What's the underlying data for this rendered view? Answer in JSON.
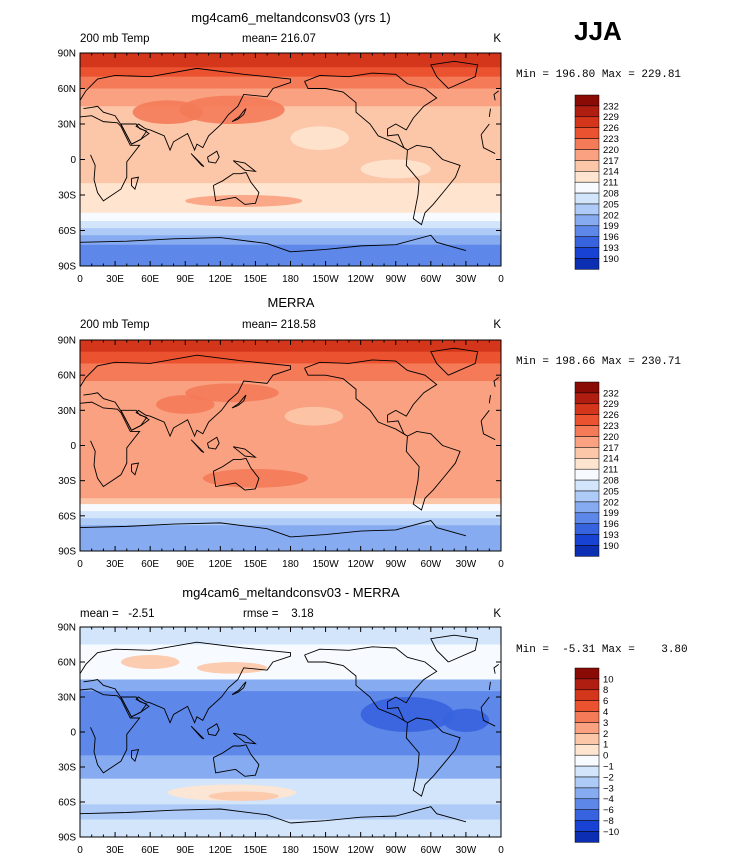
{
  "season_label": "JJA",
  "colors": {
    "warm": [
      "#ffe4cf",
      "#fcc6a8",
      "#f9a180",
      "#f47a58",
      "#ea5230",
      "#d4361c",
      "#b01d11",
      "#8a0a05"
    ],
    "cool": [
      "#f7fbff",
      "#d3e5fb",
      "#aecbf7",
      "#86abf0",
      "#5d87e8",
      "#3763df",
      "#1842d3",
      "#0b2eb2",
      "#04177a"
    ],
    "land_outline": "#000000"
  },
  "chart_data": [
    {
      "type": "heatmap",
      "title": "mg4cam6_meltandconsv03 (yrs 1)",
      "left_label": "200 mb Temp",
      "center_label": "mean= 216.07",
      "units_label": "K",
      "min_max_label": "Min = 196.80 Max = 229.81",
      "colorbar_labels": [
        "232",
        "229",
        "226",
        "223",
        "220",
        "217",
        "214",
        "211",
        "208",
        "205",
        "202",
        "199",
        "196",
        "193",
        "190"
      ],
      "x_ticks": [
        "0",
        "30E",
        "60E",
        "90E",
        "120E",
        "150E",
        "180",
        "150W",
        "120W",
        "90W",
        "60W",
        "30W",
        "0"
      ],
      "y_ticks": [
        "90N",
        "60N",
        "30N",
        "0",
        "30S",
        "60S",
        "90S"
      ],
      "lat_bands": [
        {
          "lat": [
            90,
            78
          ],
          "level": "w5"
        },
        {
          "lat": [
            78,
            70
          ],
          "level": "w4"
        },
        {
          "lat": [
            70,
            60
          ],
          "level": "w3"
        },
        {
          "lat": [
            60,
            45
          ],
          "level": "w2"
        },
        {
          "lat": [
            45,
            0
          ],
          "level": "w1"
        },
        {
          "lat": [
            0,
            -20
          ],
          "level": "w1"
        },
        {
          "lat": [
            -20,
            -45
          ],
          "level": "w0"
        },
        {
          "lat": [
            -45,
            -52
          ],
          "level": "c0"
        },
        {
          "lat": [
            -52,
            -58
          ],
          "level": "c1"
        },
        {
          "lat": [
            -58,
            -64
          ],
          "level": "c2"
        },
        {
          "lat": [
            -64,
            -72
          ],
          "level": "c3"
        },
        {
          "lat": [
            -72,
            -90
          ],
          "level": "c4"
        }
      ],
      "blobs": [
        {
          "lon": 130,
          "lat": 42,
          "rx": 45,
          "ry": 12,
          "level": "w3"
        },
        {
          "lon": 75,
          "lat": 40,
          "rx": 30,
          "ry": 10,
          "level": "w3"
        },
        {
          "lon": 205,
          "lat": 18,
          "rx": 25,
          "ry": 10,
          "level": "w0"
        },
        {
          "lon": 270,
          "lat": -8,
          "rx": 30,
          "ry": 8,
          "level": "w0"
        },
        {
          "lon": 140,
          "lat": -35,
          "rx": 50,
          "ry": 5,
          "level": "w2"
        }
      ]
    },
    {
      "type": "heatmap",
      "title": "MERRA",
      "left_label": "200 mb Temp",
      "center_label": "mean= 218.58",
      "units_label": "K",
      "min_max_label": "Min = 198.66 Max = 230.71",
      "colorbar_labels": [
        "232",
        "229",
        "226",
        "223",
        "220",
        "217",
        "214",
        "211",
        "208",
        "205",
        "202",
        "199",
        "196",
        "193",
        "190"
      ],
      "x_ticks": [
        "0",
        "30E",
        "60E",
        "90E",
        "120E",
        "150E",
        "180",
        "150W",
        "120W",
        "90W",
        "60W",
        "30W",
        "0"
      ],
      "y_ticks": [
        "90N",
        "60N",
        "30N",
        "0",
        "30S",
        "60S",
        "90S"
      ],
      "lat_bands": [
        {
          "lat": [
            90,
            80
          ],
          "level": "w5"
        },
        {
          "lat": [
            80,
            70
          ],
          "level": "w4"
        },
        {
          "lat": [
            70,
            55
          ],
          "level": "w3"
        },
        {
          "lat": [
            55,
            0
          ],
          "level": "w2"
        },
        {
          "lat": [
            0,
            -45
          ],
          "level": "w2"
        },
        {
          "lat": [
            -45,
            -50
          ],
          "level": "w1"
        },
        {
          "lat": [
            -50,
            -56
          ],
          "level": "c0"
        },
        {
          "lat": [
            -56,
            -62
          ],
          "level": "c1"
        },
        {
          "lat": [
            -62,
            -68
          ],
          "level": "c2"
        },
        {
          "lat": [
            -68,
            -90
          ],
          "level": "c3"
        }
      ],
      "blobs": [
        {
          "lon": 90,
          "lat": 35,
          "rx": 25,
          "ry": 8,
          "level": "w3"
        },
        {
          "lon": 130,
          "lat": 45,
          "rx": 40,
          "ry": 8,
          "level": "w3"
        },
        {
          "lon": 200,
          "lat": 25,
          "rx": 25,
          "ry": 8,
          "level": "w1"
        },
        {
          "lon": 150,
          "lat": -28,
          "rx": 45,
          "ry": 8,
          "level": "w3"
        }
      ]
    },
    {
      "type": "heatmap",
      "title": "mg4cam6_meltandconsv03 - MERRA",
      "left_label": "mean =   -2.51",
      "center_label": "rmse =    3.18",
      "units_label": "K",
      "min_max_label": "Min =  -5.31 Max =    3.80",
      "colorbar_labels": [
        "10",
        "8",
        "6",
        "4",
        "3",
        "2",
        "1",
        "0",
        "−1",
        "−2",
        "−3",
        "−4",
        "−6",
        "−8",
        "−10"
      ],
      "x_ticks": [
        "0",
        "30E",
        "60E",
        "90E",
        "120E",
        "150E",
        "180",
        "150W",
        "120W",
        "90W",
        "60W",
        "30W",
        "0"
      ],
      "y_ticks": [
        "90N",
        "60N",
        "30N",
        "0",
        "30S",
        "60S",
        "90S"
      ],
      "lat_bands": [
        {
          "lat": [
            90,
            75
          ],
          "level": "c1"
        },
        {
          "lat": [
            75,
            45
          ],
          "level": "c0"
        },
        {
          "lat": [
            45,
            35
          ],
          "level": "c3"
        },
        {
          "lat": [
            35,
            -20
          ],
          "level": "c4"
        },
        {
          "lat": [
            -20,
            -40
          ],
          "level": "c3"
        },
        {
          "lat": [
            -40,
            -62
          ],
          "level": "c1"
        },
        {
          "lat": [
            -62,
            -75
          ],
          "level": "c2"
        },
        {
          "lat": [
            -75,
            -90
          ],
          "level": "c1"
        }
      ],
      "blobs": [
        {
          "lon": 60,
          "lat": 60,
          "rx": 25,
          "ry": 6,
          "level": "w1"
        },
        {
          "lon": 130,
          "lat": 55,
          "rx": 30,
          "ry": 5,
          "level": "w1"
        },
        {
          "lon": 130,
          "lat": -52,
          "rx": 55,
          "ry": 7,
          "level": "w0"
        },
        {
          "lon": 140,
          "lat": -55,
          "rx": 30,
          "ry": 4,
          "level": "w1"
        },
        {
          "lon": 280,
          "lat": 15,
          "rx": 40,
          "ry": 15,
          "level": "c5"
        },
        {
          "lon": 330,
          "lat": 10,
          "rx": 20,
          "ry": 10,
          "level": "c5"
        }
      ]
    }
  ]
}
